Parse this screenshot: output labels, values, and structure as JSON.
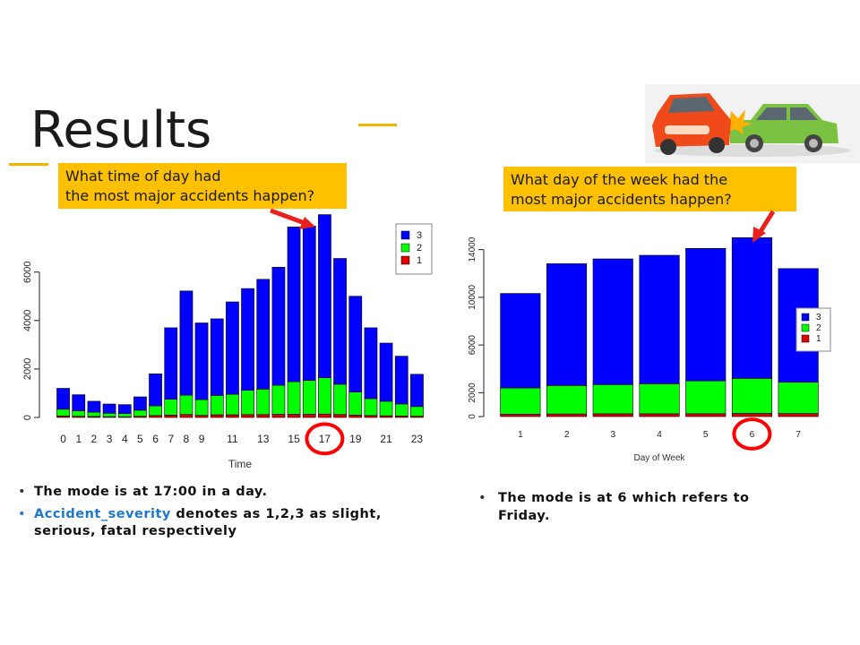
{
  "slide": {
    "title": "Results",
    "colors": {
      "accent": "#f0b400",
      "callout": "#ffc000",
      "series3": "#0000ff",
      "series2": "#00ff00",
      "series1": "#e00000",
      "highlight": "#ff0000",
      "keyword": "#1f77c8"
    }
  },
  "callouts": {
    "left": {
      "line1": "What time of day had",
      "line2": "the most major accidents happen?"
    },
    "right": {
      "line1": "What day of the week had the",
      "line2": "most major accidents happen?"
    }
  },
  "illustration": {
    "icon": "car-crash-icon"
  },
  "bullets_left": {
    "item1": "The mode is at 17:00 in a day.",
    "item2_keyword": "Accident_severity",
    "item2_rest_line1": " denotes as 1,2,3 as slight,",
    "item2_line2": "serious, fatal respectively"
  },
  "bullets_right": {
    "item1_line1": "The mode is at 6 which refers to",
    "item1_line2": "Friday."
  },
  "chart_data": [
    {
      "type": "bar",
      "stacked": true,
      "xlabel": "Time",
      "ylabel": "",
      "categories": [
        "0",
        "1",
        "2",
        "3",
        "4",
        "5",
        "6",
        "7",
        "8",
        "9",
        "10",
        "11",
        "12",
        "13",
        "14",
        "15",
        "16",
        "17",
        "18",
        "19",
        "20",
        "21",
        "22",
        "23"
      ],
      "tick_labels_x": [
        "0",
        "1",
        "2",
        "3",
        "4",
        "5",
        "6",
        "7",
        "8",
        "9",
        "11",
        "13",
        "15",
        "17",
        "19",
        "21",
        "23"
      ],
      "tick_labels_y": [
        "0",
        "2000",
        "4000",
        "6000"
      ],
      "ylim": [
        0,
        7800
      ],
      "series": [
        {
          "name": "1",
          "values": [
            60,
            50,
            40,
            35,
            30,
            50,
            80,
            100,
            120,
            90,
            110,
            110,
            120,
            120,
            130,
            130,
            130,
            140,
            120,
            100,
            80,
            70,
            60,
            50
          ]
        },
        {
          "name": "2",
          "values": [
            280,
            220,
            180,
            140,
            130,
            250,
            400,
            650,
            800,
            650,
            800,
            850,
            1000,
            1050,
            1200,
            1350,
            1400,
            1500,
            1250,
            950,
            700,
            600,
            500,
            400
          ]
        },
        {
          "name": "3",
          "values": [
            860,
            670,
            450,
            380,
            370,
            550,
            1320,
            2950,
            4300,
            3160,
            3160,
            3810,
            4200,
            4530,
            4870,
            6380,
            6370,
            6730,
            5190,
            3950,
            2920,
            2400,
            1970,
            1330
          ]
        }
      ],
      "legend": {
        "entries": [
          "3",
          "2",
          "1"
        ],
        "placement": "top-right"
      },
      "highlight_category": "17"
    },
    {
      "type": "bar",
      "stacked": true,
      "xlabel": "Day of Week",
      "ylabel": "",
      "categories": [
        "1",
        "2",
        "3",
        "4",
        "5",
        "6",
        "7"
      ],
      "tick_labels_y": [
        "0",
        "2000",
        "6000",
        "10000",
        "14000"
      ],
      "ylim": [
        0,
        14800
      ],
      "series": [
        {
          "name": "1",
          "values": [
            200,
            220,
            230,
            230,
            240,
            260,
            260
          ]
        },
        {
          "name": "2",
          "values": [
            2200,
            2380,
            2450,
            2520,
            2760,
            2940,
            2620
          ]
        },
        {
          "name": "3",
          "values": [
            7920,
            10220,
            10540,
            10770,
            11100,
            11800,
            9530
          ]
        }
      ],
      "legend": {
        "entries": [
          "3",
          "2",
          "1"
        ],
        "placement": "right"
      },
      "highlight_category": "6"
    }
  ]
}
